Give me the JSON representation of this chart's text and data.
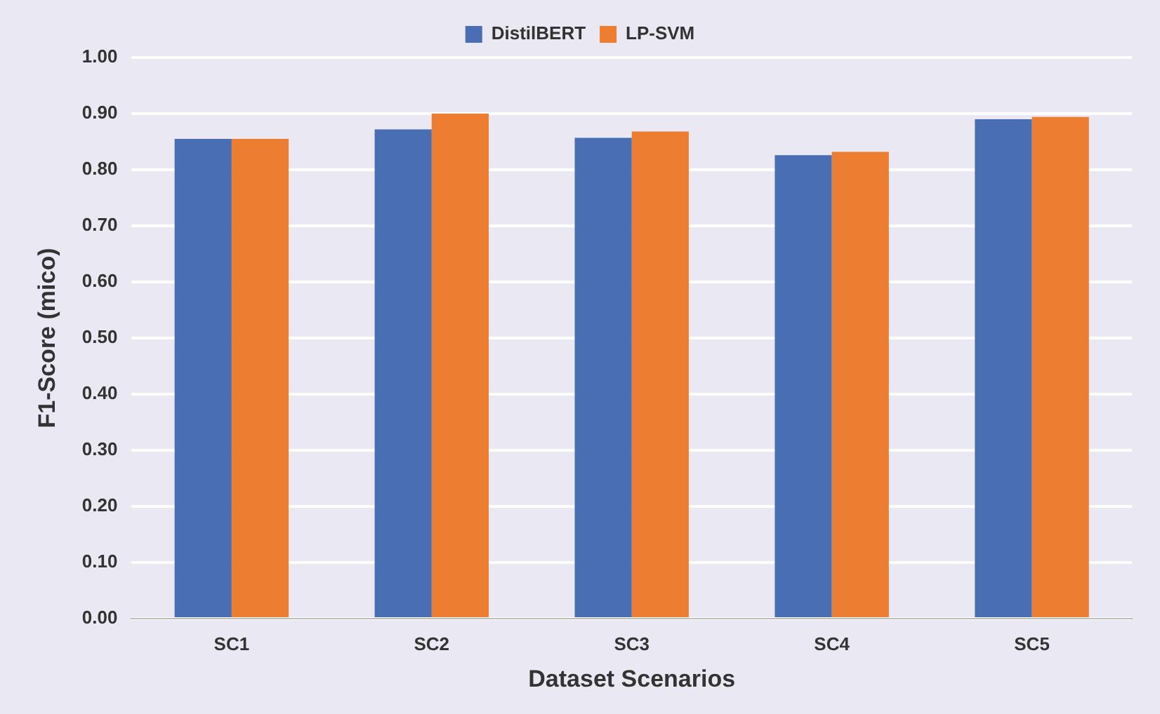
{
  "chart_data": {
    "type": "bar",
    "xlabel": "Dataset Scenarios",
    "ylabel": "F1-Score (mico)",
    "categories": [
      "SC1",
      "SC2",
      "SC3",
      "SC4",
      "SC5"
    ],
    "series": [
      {
        "name": "DistilBERT",
        "color": "#4a6eb4",
        "values": [
          0.855,
          0.872,
          0.857,
          0.826,
          0.89
        ]
      },
      {
        "name": "LP-SVM",
        "color": "#ed7d31",
        "values": [
          0.855,
          0.9,
          0.868,
          0.832,
          0.894
        ]
      }
    ],
    "ylim": [
      0,
      1
    ],
    "yticks": [
      {
        "value": 0,
        "label": "0.00"
      },
      {
        "value": 0.1,
        "label": "0.10"
      },
      {
        "value": 0.2,
        "label": "0.20"
      },
      {
        "value": 0.3,
        "label": "0.30"
      },
      {
        "value": 0.4,
        "label": "0.40"
      },
      {
        "value": 0.5,
        "label": "0.50"
      },
      {
        "value": 0.6,
        "label": "0.60"
      },
      {
        "value": 0.7,
        "label": "0.70"
      },
      {
        "value": 0.8,
        "label": "0.80"
      },
      {
        "value": 0.9,
        "label": "0.90"
      },
      {
        "value": 1,
        "label": "1.00"
      }
    ],
    "grid": "y",
    "legend": "top"
  }
}
